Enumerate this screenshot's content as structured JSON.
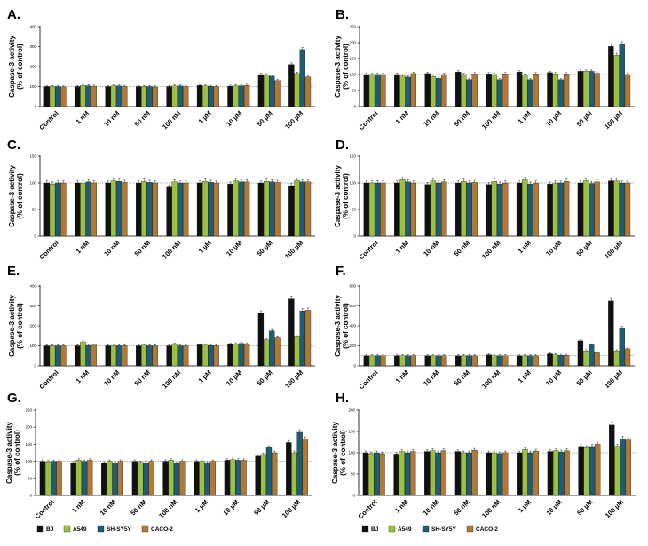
{
  "chart_data": [
    {
      "panel": "A.",
      "type": "bar",
      "ylabel_lines": [
        "Caspase-3 activity",
        "(% of control)"
      ],
      "ylim": [
        0,
        400
      ],
      "yticks": [
        0,
        100,
        200,
        300,
        400
      ],
      "categories": [
        "Control",
        "1 nM",
        "10 nM",
        "50 nM",
        "100 nM",
        "1 µM",
        "10 µM",
        "50 µM",
        "100 µM"
      ],
      "series": [
        {
          "name": "BJ",
          "values": [
            100,
            100,
            100,
            100,
            100,
            105,
            102,
            160,
            210
          ]
        },
        {
          "name": "A549",
          "values": [
            100,
            105,
            103,
            100,
            103,
            103,
            104,
            158,
            165
          ]
        },
        {
          "name": "SH-SY5Y",
          "values": [
            100,
            104,
            103,
            100,
            103,
            101,
            104,
            152,
            285
          ]
        },
        {
          "name": "CACO-2",
          "values": [
            98,
            102,
            100,
            98,
            100,
            100,
            106,
            130,
            148
          ]
        }
      ]
    },
    {
      "panel": "B.",
      "type": "bar",
      "ylabel_lines": [
        "Caspase-3 activity",
        "(% of control)"
      ],
      "ylim": [
        0,
        250
      ],
      "yticks": [
        0,
        50,
        100,
        150,
        200,
        250
      ],
      "categories": [
        "Control",
        "1 nM",
        "10 nM",
        "50 nM",
        "100 nM",
        "1 µM",
        "10 µM",
        "50 µM",
        "100 µM"
      ],
      "series": [
        {
          "name": "BJ",
          "values": [
            100,
            100,
            103,
            108,
            102,
            108,
            106,
            110,
            188
          ]
        },
        {
          "name": "A549",
          "values": [
            100,
            95,
            94,
            100,
            100,
            98,
            102,
            110,
            160
          ]
        },
        {
          "name": "SH-SY5Y",
          "values": [
            100,
            92,
            88,
            84,
            84,
            84,
            84,
            110,
            195
          ]
        },
        {
          "name": "CACO-2",
          "values": [
            100,
            103,
            100,
            102,
            102,
            102,
            102,
            104,
            100
          ]
        }
      ]
    },
    {
      "panel": "C.",
      "type": "bar",
      "ylabel_lines": [
        "Caspase-3 activity",
        "(% of control)"
      ],
      "ylim": [
        0,
        150
      ],
      "yticks": [
        0,
        50,
        100,
        150
      ],
      "categories": [
        "Control",
        "1 nM",
        "10 nM",
        "50 nM",
        "100 nM",
        "1 µM",
        "10 µM",
        "50 µM",
        "100 µM"
      ],
      "series": [
        {
          "name": "BJ",
          "values": [
            100,
            100,
            100,
            100,
            92,
            100,
            98,
            100,
            95
          ]
        },
        {
          "name": "A549",
          "values": [
            98,
            100,
            104,
            103,
            102,
            103,
            104,
            103,
            105
          ]
        },
        {
          "name": "SH-SY5Y",
          "values": [
            100,
            102,
            103,
            101,
            100,
            101,
            102,
            102,
            102
          ]
        },
        {
          "name": "CACO-2",
          "values": [
            100,
            100,
            101,
            100,
            100,
            100,
            102,
            101,
            102
          ]
        }
      ]
    },
    {
      "panel": "D.",
      "type": "bar",
      "ylabel_lines": [
        "Caspase-3 activity",
        "(% of control)"
      ],
      "ylim": [
        0,
        150
      ],
      "yticks": [
        0,
        50,
        100,
        150
      ],
      "categories": [
        "Control",
        "1 nM",
        "10 nM",
        "50 nM",
        "100 nM",
        "1 µM",
        "10 µM",
        "50 µM",
        "100 µM"
      ],
      "series": [
        {
          "name": "BJ",
          "values": [
            100,
            100,
            97,
            100,
            97,
            100,
            98,
            100,
            104
          ]
        },
        {
          "name": "A549",
          "values": [
            100,
            106,
            104,
            103,
            103,
            106,
            100,
            104,
            104
          ]
        },
        {
          "name": "SH-SY5Y",
          "values": [
            100,
            102,
            100,
            100,
            98,
            98,
            100,
            99,
            100
          ]
        },
        {
          "name": "CACO-2",
          "values": [
            100,
            100,
            102,
            101,
            100,
            100,
            103,
            102,
            100
          ]
        }
      ]
    },
    {
      "panel": "E.",
      "type": "bar",
      "ylabel_lines": [
        "Caspase-3 activity",
        "(% of control)"
      ],
      "ylim": [
        0,
        400
      ],
      "yticks": [
        0,
        100,
        200,
        300,
        400
      ],
      "categories": [
        "Control",
        "1 nM",
        "10 nM",
        "50 nM",
        "100 nM",
        "1 µM",
        "10 µM",
        "50 µM",
        "100 µM"
      ],
      "series": [
        {
          "name": "BJ",
          "values": [
            100,
            100,
            100,
            100,
            100,
            105,
            108,
            265,
            335
          ]
        },
        {
          "name": "A549",
          "values": [
            100,
            120,
            102,
            103,
            108,
            103,
            110,
            130,
            145
          ]
        },
        {
          "name": "SH-SY5Y",
          "values": [
            100,
            102,
            100,
            100,
            100,
            101,
            112,
            175,
            275
          ]
        },
        {
          "name": "CACO-2",
          "values": [
            100,
            103,
            100,
            100,
            100,
            100,
            108,
            140,
            278
          ]
        }
      ]
    },
    {
      "panel": "F.",
      "type": "bar",
      "ylabel_lines": [
        "Caspase-3 activity",
        "(% of control)"
      ],
      "ylim": [
        0,
        800
      ],
      "yticks": [
        0,
        200,
        400,
        600,
        800
      ],
      "categories": [
        "Control",
        "1 nM",
        "10 nM",
        "50 nM",
        "100 nM",
        "1 µM",
        "10 µM",
        "50 µM",
        "100 µM"
      ],
      "series": [
        {
          "name": "BJ",
          "values": [
            100,
            100,
            100,
            100,
            110,
            100,
            120,
            250,
            650
          ]
        },
        {
          "name": "A549",
          "values": [
            100,
            100,
            100,
            100,
            100,
            100,
            110,
            150,
            150
          ]
        },
        {
          "name": "SH-SY5Y",
          "values": [
            100,
            100,
            100,
            100,
            100,
            100,
            105,
            210,
            380
          ]
        },
        {
          "name": "CACO-2",
          "values": [
            100,
            100,
            100,
            100,
            100,
            100,
            105,
            130,
            170
          ]
        }
      ]
    },
    {
      "panel": "G.",
      "type": "bar",
      "ylabel_lines": [
        "Caspase-3 activity",
        "(% of control)"
      ],
      "ylim": [
        0,
        250
      ],
      "yticks": [
        0,
        50,
        100,
        150,
        200,
        250
      ],
      "categories": [
        "Control",
        "1 nM",
        "10 nM",
        "50 nM",
        "100 nM",
        "1 µM",
        "10 µM",
        "50 µM",
        "100 µM"
      ],
      "series": [
        {
          "name": "BJ",
          "values": [
            100,
            95,
            95,
            100,
            100,
            100,
            103,
            115,
            155
          ]
        },
        {
          "name": "A549",
          "values": [
            98,
            103,
            100,
            97,
            103,
            100,
            105,
            120,
            125
          ]
        },
        {
          "name": "SH-SY5Y",
          "values": [
            100,
            100,
            95,
            95,
            93,
            95,
            103,
            140,
            185
          ]
        },
        {
          "name": "CACO-2",
          "values": [
            100,
            103,
            100,
            100,
            100,
            100,
            103,
            125,
            165
          ]
        }
      ]
    },
    {
      "panel": "H.",
      "type": "bar",
      "ylabel_lines": [
        "Caspase-3 activity",
        "(% of control)"
      ],
      "ylim": [
        0,
        200
      ],
      "yticks": [
        0,
        50,
        100,
        150,
        200
      ],
      "categories": [
        "Control",
        "1 nM",
        "10 nM",
        "50 nM",
        "100 nM",
        "1 µM",
        "10 µM",
        "50 µM",
        "100 µM"
      ],
      "series": [
        {
          "name": "BJ",
          "values": [
            100,
            97,
            103,
            103,
            100,
            100,
            103,
            115,
            165
          ]
        },
        {
          "name": "A549",
          "values": [
            98,
            103,
            105,
            100,
            100,
            108,
            105,
            112,
            115
          ]
        },
        {
          "name": "SH-SY5Y",
          "values": [
            100,
            100,
            100,
            100,
            98,
            100,
            102,
            115,
            133
          ]
        },
        {
          "name": "CACO-2",
          "values": [
            98,
            103,
            105,
            106,
            100,
            104,
            105,
            120,
            130
          ]
        }
      ]
    }
  ],
  "legend": [
    {
      "name": "BJ",
      "color": "#111111"
    },
    {
      "name": "A549",
      "color": "#9cc13e"
    },
    {
      "name": "SH-SY5Y",
      "color": "#1f5d74"
    },
    {
      "name": "CACO-2",
      "color": "#b07a36"
    }
  ]
}
